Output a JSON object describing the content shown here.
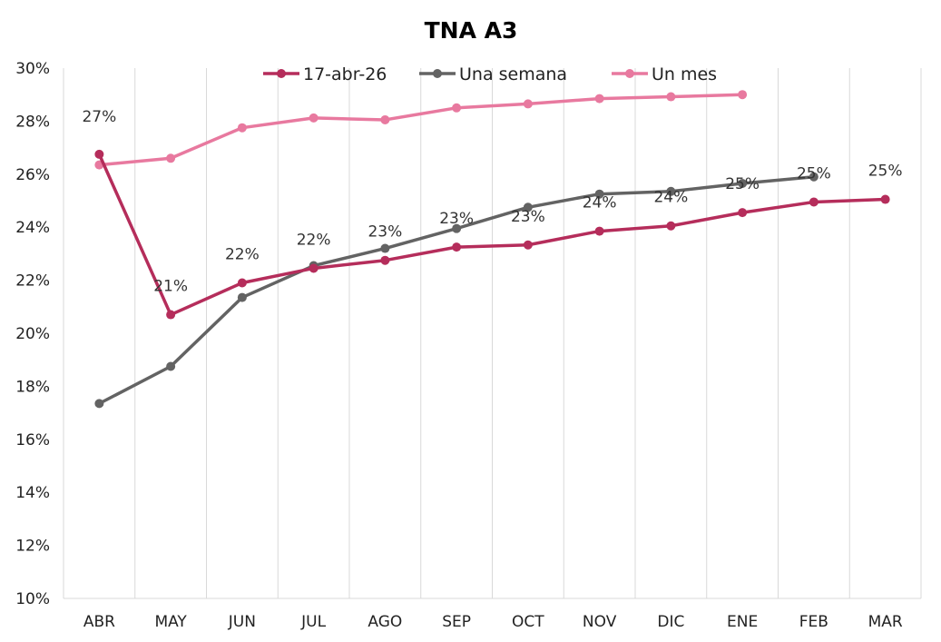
{
  "chart_data": {
    "type": "line",
    "title": "TNA A3",
    "xlabel": "",
    "ylabel": "",
    "categories": [
      "ABR",
      "MAY",
      "JUN",
      "JUL",
      "AGO",
      "SEP",
      "OCT",
      "NOV",
      "DIC",
      "ENE",
      "FEB",
      "MAR"
    ],
    "ylim": [
      10,
      30
    ],
    "yticks": [
      10,
      12,
      14,
      16,
      18,
      20,
      22,
      24,
      26,
      28,
      30
    ],
    "ytick_labels": [
      "10%",
      "12%",
      "14%",
      "16%",
      "18%",
      "20%",
      "22%",
      "24%",
      "26%",
      "28%",
      "30%"
    ],
    "grid": "vertical",
    "legend_position": "top",
    "series": [
      {
        "name": "17-abr-26",
        "color": "#b52d5b",
        "values": [
          26.75,
          20.7,
          21.9,
          22.45,
          22.75,
          23.25,
          23.33,
          23.85,
          24.05,
          24.55,
          24.95,
          25.05
        ],
        "labels": [
          "27%",
          "21%",
          "22%",
          "22%",
          "23%",
          "23%",
          "23%",
          "24%",
          "24%",
          "25%",
          "25%",
          "25%"
        ]
      },
      {
        "name": "Una semana",
        "color": "#636363",
        "values": [
          17.35,
          18.75,
          21.35,
          22.55,
          23.2,
          23.95,
          24.75,
          25.25,
          25.35,
          25.65,
          25.9,
          null
        ]
      },
      {
        "name": "Un mes",
        "color": "#e8799f",
        "values": [
          26.35,
          26.6,
          27.75,
          28.12,
          28.05,
          28.5,
          28.65,
          28.85,
          28.92,
          29.0,
          null,
          null
        ]
      }
    ]
  }
}
